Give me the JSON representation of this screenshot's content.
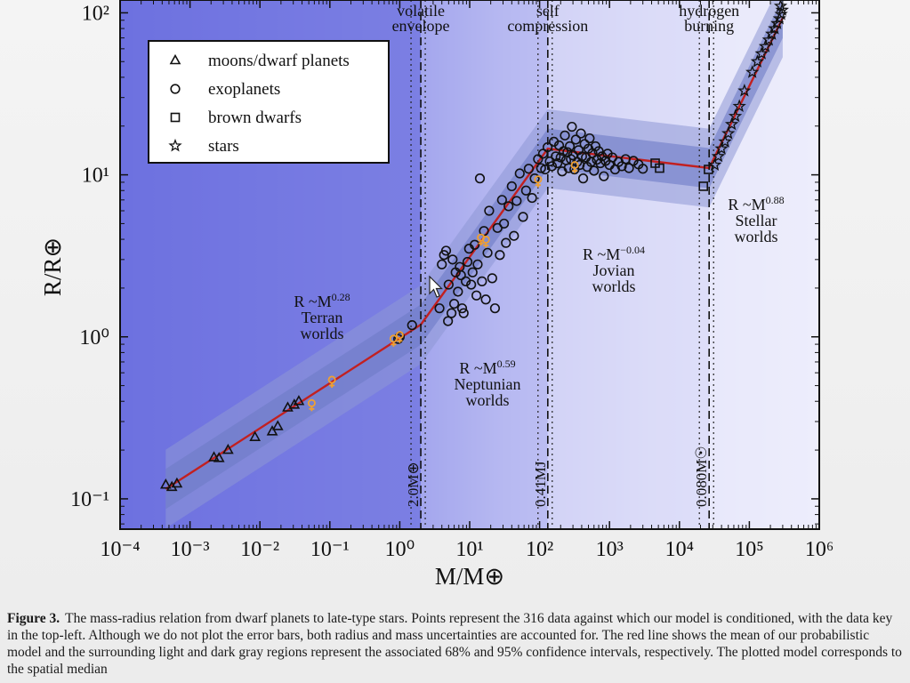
{
  "figure": {
    "caption_label": "Figure 3.",
    "caption_text": "The mass-radius relation from dwarf planets to late-type stars. Points represent the 316 data against which our model is conditioned, with the data key in the top-left. Although we do not plot the error bars, both radius and mass uncertainties are accounted for. The red line shows the mean of our probabilistic model and the surrounding light and dark gray regions represent the associated 68% and 95% confidence intervals, respectively. The plotted model corresponds to the spatial median"
  },
  "colors": {
    "region_terran": "#6f73e0",
    "region_neptunian": "#b7b8f2",
    "region_jovian": "#dcdcf8",
    "region_stellar": "#ededfb",
    "band_outer": "#8e98d6",
    "band_inner": "#6e7bc6",
    "model_line": "#c22020",
    "solar_system": "#f0a030",
    "markers": "#111111"
  },
  "chart_data": {
    "type": "scatter",
    "title": "",
    "xlabel": "M/M⊕",
    "ylabel": "R/R⊕",
    "xscale": "log",
    "yscale": "log",
    "xlim": [
      0.0001,
      1000000
    ],
    "ylim": [
      0.065,
      120
    ],
    "x_tick_labels": [
      "10⁻⁴",
      "10⁻³",
      "10⁻²",
      "10⁻¹",
      "10⁰",
      "10¹",
      "10²",
      "10³",
      "10⁴",
      "10⁵",
      "10⁶"
    ],
    "x_tick_values": [
      0.0001,
      0.001,
      0.01,
      0.1,
      1,
      10,
      100,
      1000,
      10000,
      100000,
      1000000
    ],
    "y_tick_labels": [
      "10⁻¹",
      "10⁰",
      "10¹",
      "10²"
    ],
    "y_tick_values": [
      0.1,
      1,
      10,
      100
    ],
    "legend": {
      "position": "top-left",
      "entries": [
        {
          "marker": "triangle",
          "label": "moons/dwarf planets"
        },
        {
          "marker": "circle",
          "label": "exoplanets"
        },
        {
          "marker": "square",
          "label": "brown dwarfs"
        },
        {
          "marker": "star",
          "label": "stars"
        }
      ]
    },
    "transitions": [
      {
        "mass": 2.0,
        "top_label": [
          "volatile",
          "envelope"
        ],
        "side_label": "2.0M⊕"
      },
      {
        "mass": 131,
        "top_label": [
          "self",
          "compression"
        ],
        "side_label": "0.41MJ"
      },
      {
        "mass": 26600,
        "top_label": [
          "hydrogen",
          "burning"
        ],
        "side_label": "0.080M☉"
      }
    ],
    "regimes": [
      {
        "relation": "R ~M",
        "exponent": "0.28",
        "name": "Terran",
        "suffix": "worlds"
      },
      {
        "relation": "R ~M",
        "exponent": "0.59",
        "name": "Neptunian",
        "suffix": "worlds"
      },
      {
        "relation": "R ~M",
        "exponent": "−0.04",
        "name": "Jovian",
        "suffix": "worlds"
      },
      {
        "relation": "R ~M",
        "exponent": "0.88",
        "name": "Stellar",
        "suffix": "worlds"
      }
    ],
    "model_line": {
      "x": [
        0.00045,
        2.0,
        131,
        26600,
        300000
      ],
      "y": [
        0.115,
        1.19,
        14.5,
        11.0,
        93
      ]
    },
    "series": [
      {
        "name": "moons/dwarf planets",
        "marker": "triangle",
        "points": [
          [
            0.00045,
            0.122
          ],
          [
            0.00055,
            0.118
          ],
          [
            0.00065,
            0.124
          ],
          [
            0.0022,
            0.18
          ],
          [
            0.0026,
            0.178
          ],
          [
            0.0035,
            0.2
          ],
          [
            0.0085,
            0.24
          ],
          [
            0.015,
            0.26
          ],
          [
            0.018,
            0.28
          ],
          [
            0.025,
            0.365
          ],
          [
            0.031,
            0.38
          ],
          [
            0.036,
            0.4
          ]
        ]
      },
      {
        "name": "exoplanets",
        "marker": "circle",
        "points": [
          [
            1.5,
            1.18
          ],
          [
            3.7,
            1.5
          ],
          [
            4.0,
            2.8
          ],
          [
            4.3,
            3.2
          ],
          [
            4.6,
            3.4
          ],
          [
            5.0,
            2.1
          ],
          [
            5.5,
            1.4
          ],
          [
            6.0,
            1.6
          ],
          [
            6.3,
            2.5
          ],
          [
            6.8,
            1.9
          ],
          [
            7.2,
            2.7
          ],
          [
            7.8,
            1.5
          ],
          [
            8.2,
            1.4
          ],
          [
            8.8,
            2.2
          ],
          [
            9.3,
            2.9
          ],
          [
            9.8,
            3.5
          ],
          [
            10.5,
            2.1
          ],
          [
            11.0,
            2.5
          ],
          [
            11.8,
            3.7
          ],
          [
            12.5,
            1.8
          ],
          [
            13.0,
            2.8
          ],
          [
            14.0,
            9.5
          ],
          [
            15.0,
            2.2
          ],
          [
            16.0,
            4.5
          ],
          [
            17.0,
            1.7
          ],
          [
            18.0,
            3.3
          ],
          [
            19.0,
            6.0
          ],
          [
            21.0,
            2.3
          ],
          [
            23.0,
            1.5
          ],
          [
            25.0,
            4.7
          ],
          [
            27.0,
            3.2
          ],
          [
            29.0,
            7.0
          ],
          [
            31.0,
            5.0
          ],
          [
            33.0,
            3.8
          ],
          [
            36.0,
            6.4
          ],
          [
            40.0,
            8.5
          ],
          [
            43.0,
            4.2
          ],
          [
            47.0,
            6.9
          ],
          [
            52.0,
            10.2
          ],
          [
            58.0,
            5.5
          ],
          [
            64.0,
            8.0
          ],
          [
            70.0,
            10.9
          ],
          [
            78.0,
            7.2
          ],
          [
            85.0,
            9.5
          ],
          [
            95.0,
            12.5
          ],
          [
            105,
            11.0
          ],
          [
            112,
            13.5
          ],
          [
            120,
            10.8
          ],
          [
            130,
            14.8
          ],
          [
            140,
            12.1
          ],
          [
            150,
            11.3
          ],
          [
            160,
            16.0
          ],
          [
            170,
            13.0
          ],
          [
            180,
            11.8
          ],
          [
            190,
            15.2
          ],
          [
            200,
            12.8
          ],
          [
            210,
            10.5
          ],
          [
            220,
            14.0
          ],
          [
            230,
            17.5
          ],
          [
            240,
            12.3
          ],
          [
            250,
            13.8
          ],
          [
            260,
            11.0
          ],
          [
            270,
            15.0
          ],
          [
            280,
            12.5
          ],
          [
            290,
            19.8
          ],
          [
            300,
            13.2
          ],
          [
            315,
            10.8
          ],
          [
            330,
            16.5
          ],
          [
            345,
            12.0
          ],
          [
            360,
            14.2
          ],
          [
            375,
            11.5
          ],
          [
            390,
            18.0
          ],
          [
            405,
            13.0
          ],
          [
            420,
            9.5
          ],
          [
            440,
            15.5
          ],
          [
            460,
            12.8
          ],
          [
            480,
            11.2
          ],
          [
            500,
            14.5
          ],
          [
            520,
            16.8
          ],
          [
            545,
            12.0
          ],
          [
            570,
            13.6
          ],
          [
            600,
            10.6
          ],
          [
            630,
            15.0
          ],
          [
            660,
            12.4
          ],
          [
            700,
            14.0
          ],
          [
            740,
            11.8
          ],
          [
            780,
            13.0
          ],
          [
            830,
            9.8
          ],
          [
            880,
            12.2
          ],
          [
            940,
            13.5
          ],
          [
            1000,
            11.5
          ],
          [
            1100,
            12.8
          ],
          [
            1200,
            10.8
          ],
          [
            1350,
            12.0
          ],
          [
            1500,
            11.3
          ],
          [
            1700,
            12.5
          ],
          [
            1900,
            11.0
          ],
          [
            2200,
            12.2
          ],
          [
            2600,
            11.6
          ],
          [
            3000,
            10.9
          ],
          [
            1.0,
            1.0
          ],
          [
            0.95,
            0.97
          ],
          [
            4.9,
            1.25
          ],
          [
            5.7,
            3.0
          ],
          [
            7.5,
            2.4
          ]
        ]
      },
      {
        "name": "brown dwarfs",
        "marker": "square",
        "points": [
          [
            4500,
            11.8
          ],
          [
            5200,
            11.0
          ],
          [
            22000,
            8.5
          ],
          [
            26000,
            10.8
          ]
        ]
      },
      {
        "name": "stars",
        "marker": "star",
        "points": [
          [
            32000,
            11.5
          ],
          [
            36000,
            13.0
          ],
          [
            40000,
            14.5
          ],
          [
            45000,
            16.0
          ],
          [
            50000,
            18.0
          ],
          [
            56000,
            20.5
          ],
          [
            63000,
            23.0
          ],
          [
            72000,
            26.5
          ],
          [
            85000,
            33.0
          ],
          [
            110000,
            43.0
          ],
          [
            130000,
            50.0
          ],
          [
            150000,
            56.0
          ],
          [
            170000,
            62.0
          ],
          [
            190000,
            68.0
          ],
          [
            210000,
            74.0
          ],
          [
            230000,
            80.0
          ],
          [
            250000,
            86.0
          ],
          [
            270000,
            92.0
          ],
          [
            285000,
            98.0
          ],
          [
            295000,
            104.0
          ],
          [
            280000,
            110.0
          ]
        ]
      },
      {
        "name": "solar system",
        "marker": "planet-symbol",
        "points": [
          [
            0.055,
            0.38
          ],
          [
            0.107,
            0.53
          ],
          [
            0.815,
            0.95
          ],
          [
            1.0,
            1.0
          ],
          [
            14.5,
            4.0
          ],
          [
            17.1,
            3.88
          ],
          [
            95.2,
            9.14
          ],
          [
            318,
            11.2
          ]
        ]
      }
    ],
    "grid": false
  }
}
